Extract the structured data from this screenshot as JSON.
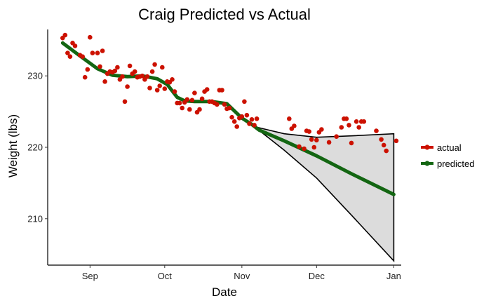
{
  "chart_data": {
    "type": "scatter",
    "title": "Craig Predicted vs Actual",
    "xlabel": "Date",
    "ylabel": "Weight (lbs)",
    "xlim": [
      "2017-08-15",
      "2018-01-04"
    ],
    "ylim": [
      203.5,
      236.5
    ],
    "x_ticks": [
      {
        "date": "2017-09-01",
        "label": "Sep"
      },
      {
        "date": "2017-10-01",
        "label": "Oct"
      },
      {
        "date": "2017-11-01",
        "label": "Nov"
      },
      {
        "date": "2017-12-01",
        "label": "Dec"
      },
      {
        "date": "2018-01-01",
        "label": "Jan"
      }
    ],
    "y_ticks": [
      210,
      220,
      230
    ],
    "grid": false,
    "legend_position": "right",
    "colors": {
      "actual": "#cc1100",
      "predicted": "#136612",
      "band_fill": "#dcdcdc",
      "band_edge": "#000000"
    },
    "series": [
      {
        "name": "actual",
        "kind": "points",
        "points": [
          [
            "2017-08-21",
            235.3
          ],
          [
            "2017-08-22",
            235.7
          ],
          [
            "2017-08-23",
            233.2
          ],
          [
            "2017-08-24",
            232.7
          ],
          [
            "2017-08-25",
            234.6
          ],
          [
            "2017-08-26",
            234.2
          ],
          [
            "2017-08-28",
            232.9
          ],
          [
            "2017-08-29",
            232.7
          ],
          [
            "2017-08-30",
            229.8
          ],
          [
            "2017-08-31",
            230.9
          ],
          [
            "2017-09-01",
            235.4
          ],
          [
            "2017-09-02",
            233.2
          ],
          [
            "2017-09-04",
            233.2
          ],
          [
            "2017-09-05",
            231.3
          ],
          [
            "2017-09-06",
            233.5
          ],
          [
            "2017-09-07",
            229.2
          ],
          [
            "2017-09-08",
            230.3
          ],
          [
            "2017-09-09",
            230.6
          ],
          [
            "2017-09-10",
            230.5
          ],
          [
            "2017-09-11",
            230.7
          ],
          [
            "2017-09-12",
            231.2
          ],
          [
            "2017-09-13",
            229.5
          ],
          [
            "2017-09-14",
            229.9
          ],
          [
            "2017-09-15",
            226.4
          ],
          [
            "2017-09-16",
            228.5
          ],
          [
            "2017-09-17",
            231.4
          ],
          [
            "2017-09-18",
            230.3
          ],
          [
            "2017-09-19",
            230.6
          ],
          [
            "2017-09-20",
            229.8
          ],
          [
            "2017-09-21",
            229.9
          ],
          [
            "2017-09-22",
            230.0
          ],
          [
            "2017-09-23",
            229.5
          ],
          [
            "2017-09-24",
            229.9
          ],
          [
            "2017-09-25",
            228.3
          ],
          [
            "2017-09-26",
            230.6
          ],
          [
            "2017-09-27",
            231.6
          ],
          [
            "2017-09-28",
            228.0
          ],
          [
            "2017-09-29",
            228.6
          ],
          [
            "2017-09-30",
            231.2
          ],
          [
            "2017-10-01",
            228.2
          ],
          [
            "2017-10-02",
            229.2
          ],
          [
            "2017-10-03",
            229.1
          ],
          [
            "2017-10-04",
            229.5
          ],
          [
            "2017-10-05",
            227.8
          ],
          [
            "2017-10-06",
            226.2
          ],
          [
            "2017-10-07",
            226.2
          ],
          [
            "2017-10-08",
            225.5
          ],
          [
            "2017-10-09",
            226.3
          ],
          [
            "2017-10-10",
            226.7
          ],
          [
            "2017-10-11",
            225.3
          ],
          [
            "2017-10-12",
            226.6
          ],
          [
            "2017-10-13",
            227.6
          ],
          [
            "2017-10-14",
            224.9
          ],
          [
            "2017-10-15",
            225.3
          ],
          [
            "2017-10-16",
            226.8
          ],
          [
            "2017-10-17",
            227.8
          ],
          [
            "2017-10-18",
            228.1
          ],
          [
            "2017-10-19",
            226.4
          ],
          [
            "2017-10-20",
            226.4
          ],
          [
            "2017-10-21",
            226.2
          ],
          [
            "2017-10-22",
            226.0
          ],
          [
            "2017-10-23",
            228.0
          ],
          [
            "2017-10-24",
            228.0
          ],
          [
            "2017-10-25",
            226.0
          ],
          [
            "2017-10-26",
            225.4
          ],
          [
            "2017-10-27",
            225.5
          ],
          [
            "2017-10-28",
            224.2
          ],
          [
            "2017-10-29",
            223.6
          ],
          [
            "2017-10-30",
            222.9
          ],
          [
            "2017-10-31",
            224.1
          ],
          [
            "2017-11-01",
            224.3
          ],
          [
            "2017-11-02",
            226.4
          ],
          [
            "2017-11-03",
            224.5
          ],
          [
            "2017-11-04",
            223.3
          ],
          [
            "2017-11-05",
            223.9
          ],
          [
            "2017-11-06",
            223.1
          ],
          [
            "2017-11-07",
            224.0
          ],
          [
            "2017-11-20",
            224.0
          ],
          [
            "2017-11-21",
            222.6
          ],
          [
            "2017-11-22",
            223.0
          ],
          [
            "2017-11-24",
            220.1
          ],
          [
            "2017-11-26",
            219.8
          ],
          [
            "2017-11-27",
            222.3
          ],
          [
            "2017-11-28",
            222.2
          ],
          [
            "2017-11-29",
            221.1
          ],
          [
            "2017-11-30",
            220.0
          ],
          [
            "2017-12-01",
            221.0
          ],
          [
            "2017-12-02",
            222.1
          ],
          [
            "2017-12-03",
            222.5
          ],
          [
            "2017-12-06",
            220.7
          ],
          [
            "2017-12-09",
            221.5
          ],
          [
            "2017-12-11",
            222.8
          ],
          [
            "2017-12-12",
            224.0
          ],
          [
            "2017-12-13",
            224.0
          ],
          [
            "2017-12-14",
            223.1
          ],
          [
            "2017-12-15",
            220.6
          ],
          [
            "2017-12-17",
            223.6
          ],
          [
            "2017-12-18",
            222.8
          ],
          [
            "2017-12-19",
            223.6
          ],
          [
            "2017-12-20",
            223.6
          ],
          [
            "2017-12-25",
            222.3
          ],
          [
            "2017-12-27",
            221.1
          ],
          [
            "2017-12-28",
            220.3
          ],
          [
            "2017-12-29",
            219.5
          ],
          [
            "2018-01-02",
            220.9
          ]
        ]
      },
      {
        "name": "predicted",
        "kind": "line",
        "points": [
          [
            "2017-08-21",
            234.6
          ],
          [
            "2017-08-28",
            232.8
          ],
          [
            "2017-09-04",
            231.0
          ],
          [
            "2017-09-10",
            230.1
          ],
          [
            "2017-09-16",
            229.9
          ],
          [
            "2017-09-22",
            230.0
          ],
          [
            "2017-09-28",
            229.6
          ],
          [
            "2017-10-02",
            228.8
          ],
          [
            "2017-10-06",
            227.0
          ],
          [
            "2017-10-09",
            226.5
          ],
          [
            "2017-10-13",
            226.4
          ],
          [
            "2017-10-20",
            226.4
          ],
          [
            "2017-10-26",
            226.1
          ],
          [
            "2017-11-01",
            224.1
          ],
          [
            "2017-11-05",
            223.2
          ],
          [
            "2017-11-08",
            222.4
          ],
          [
            "2017-11-18",
            220.9
          ],
          [
            "2017-12-01",
            218.8
          ],
          [
            "2017-12-15",
            216.3
          ],
          [
            "2018-01-01",
            213.4
          ]
        ]
      }
    ],
    "prediction_band": {
      "upper": [
        [
          "2017-11-06",
          222.9
        ],
        [
          "2017-11-18",
          221.9
        ],
        [
          "2017-12-01",
          221.4
        ],
        [
          "2017-12-15",
          221.6
        ],
        [
          "2018-01-01",
          221.9
        ]
      ],
      "lower": [
        [
          "2017-11-06",
          222.9
        ],
        [
          "2017-11-18",
          219.6
        ],
        [
          "2017-12-01",
          215.7
        ],
        [
          "2017-12-15",
          210.5
        ],
        [
          "2018-01-01",
          204.1
        ]
      ]
    }
  }
}
